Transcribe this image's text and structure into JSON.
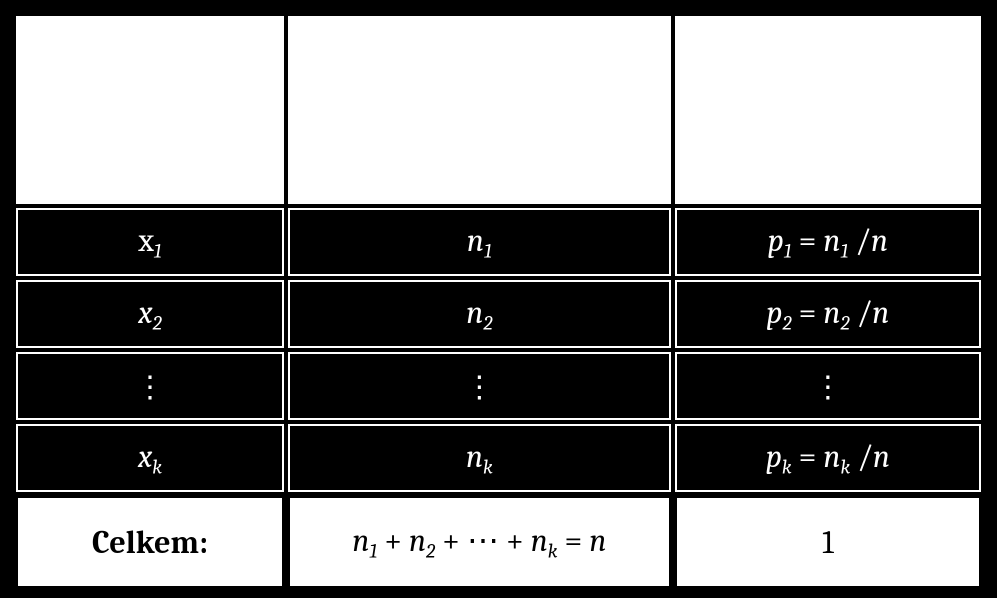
{
  "table": {
    "type": "table",
    "background_color": "#000000",
    "header_bg": "#ffffff",
    "cell_bg_black": "#000000",
    "cell_text_white": "#ffffff",
    "cell_border_white": "#ffffff",
    "footer_bg": "#ffffff",
    "footer_text": "#000000",
    "footer_border": "#000000",
    "font_family": "Cambria",
    "body_fontsize_pt": 24,
    "column_widths_pct": [
      28,
      40,
      32
    ],
    "columns": [
      "value",
      "abs_freq",
      "rel_freq"
    ],
    "header_labels": [
      "",
      "",
      ""
    ],
    "rows": [
      {
        "value_base": "x",
        "value_sub": "1",
        "value_upright_base": true,
        "n_base": "n",
        "n_sub": "1",
        "p_expr": {
          "p_base": "p",
          "p_sub": "1",
          "eq": " = ",
          "n_base": "n",
          "n_sub": "1",
          "over": " /",
          "denom": "n"
        }
      },
      {
        "value_base": "x",
        "value_sub": "2",
        "n_base": "n",
        "n_sub": "2",
        "p_expr": {
          "p_base": "p",
          "p_sub": "2",
          "eq": " = ",
          "n_base": "n",
          "n_sub": "2",
          "over": " /",
          "denom": "n"
        }
      },
      {
        "dots": "⋮"
      },
      {
        "value_base": "x",
        "value_sub": "k",
        "n_base": "n",
        "n_sub": "k",
        "p_expr": {
          "p_base": "p",
          "p_sub": "k",
          "eq": " = ",
          "n_base": "n",
          "n_sub": "k",
          "over": " /",
          "denom": "n"
        }
      }
    ],
    "footer": {
      "label": "Celkem:",
      "sum_parts": {
        "n": "n",
        "s1": "1",
        "plus1": " + ",
        "s2": "2",
        "plus2": " + ⋯ + ",
        "sk": "k",
        "eq": " = ",
        "total": "n"
      },
      "rel_total": "1"
    }
  }
}
